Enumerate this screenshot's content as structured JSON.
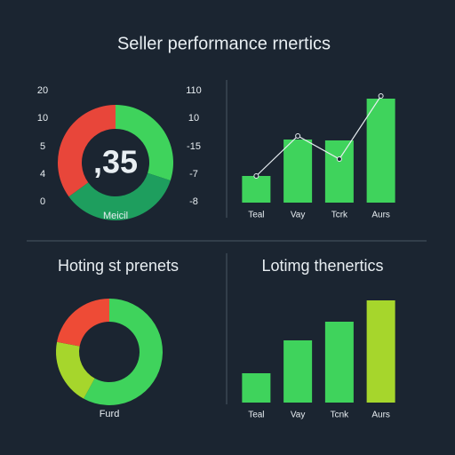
{
  "title": "Seller performance rnertics",
  "chart_data": [
    {
      "type": "donut",
      "center_label": ",35",
      "label": "Meicil",
      "left_labels": [
        "20",
        "10",
        "5",
        "4",
        "0"
      ],
      "right_labels": [
        "110",
        "10",
        "-15",
        "-7",
        "-8"
      ],
      "values": [
        30,
        35,
        35
      ],
      "colors": [
        "#3fd35c",
        "#1e9e5e",
        "#e8463a"
      ]
    },
    {
      "type": "barline",
      "categories": [
        "Teal",
        "Vay",
        "Tcrk",
        "Aurs"
      ],
      "values": [
        30,
        71,
        70,
        117
      ],
      "line_values": [
        30,
        75,
        49,
        120
      ],
      "colors": [
        "#3fd35c",
        "#3fd35c",
        "#3fd35c",
        "#3fd35c"
      ],
      "line_color": "#e8eef2",
      "ylim": [
        0,
        130
      ]
    },
    {
      "type": "donut",
      "title": "Hoting st prenets",
      "label": "Furd",
      "values": [
        58,
        20,
        22
      ],
      "colors": [
        "#3fd35c",
        "#a6d62c",
        "#ee4b36"
      ]
    },
    {
      "type": "bar",
      "title": "Lotimg thenertics",
      "categories": [
        "Teal",
        "Vay",
        "Tcnk",
        "Aurs"
      ],
      "values": [
        33,
        70,
        91,
        115
      ],
      "colors": [
        "#3fd35c",
        "#3fd35c",
        "#3fd35c",
        "#a6d62c"
      ],
      "ylim": [
        0,
        130
      ]
    }
  ]
}
